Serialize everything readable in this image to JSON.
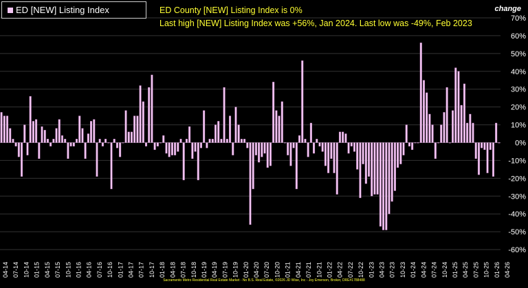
{
  "legend": {
    "label": "ED [NEW] Listing Index"
  },
  "headline": "ED County [NEW] Listing Index is 0%",
  "subline": "Last high [NEW] Listing Index was +56%, Jan 2024. Last low was -49%, Feb 2023",
  "unit_label": "change",
  "footer": "Sacramento Metro Residential Real Estate Market - No B.S. Real Estate, ©2026 JD Wise, Inc - Joy Emerson, Broker, DRE#1788488",
  "colors": {
    "background": "#000000",
    "bar_fill": "#f3c6f3",
    "bar_edge": "#c080c0",
    "annotation": "#ffff33",
    "grid": "#333333"
  },
  "chart_data": {
    "type": "bar",
    "title": "ED County [NEW] Listing Index is 0%",
    "ylabel": "change",
    "series_name": "ED [NEW] Listing Index",
    "ylim": [
      -60,
      70
    ],
    "yticks": [
      70,
      60,
      50,
      40,
      30,
      20,
      10,
      0,
      -10,
      -20,
      -30,
      -40,
      -50,
      -60
    ],
    "ytick_labels": [
      "70%",
      "60%",
      "50%",
      "40%",
      "30%",
      "20%",
      "10%",
      "0%",
      "-10%",
      "-20%",
      "-30%",
      "-40%",
      "-50%",
      "-60%"
    ],
    "xtick_labels": [
      "04-14",
      "07-14",
      "10-14",
      "01-15",
      "04-15",
      "07-15",
      "10-15",
      "01-16",
      "04-16",
      "07-16",
      "10-16",
      "01-17",
      "04-17",
      "07-17",
      "10-17",
      "01-18",
      "04-18",
      "07-18",
      "10-18",
      "01-19",
      "04-19",
      "07-19",
      "10-19",
      "01-20",
      "04-20",
      "07-20",
      "10-20",
      "01-21",
      "04-21",
      "07-21",
      "10-21",
      "01-22",
      "04-22",
      "07-22",
      "10-22",
      "01-23",
      "04-23",
      "07-23",
      "10-23",
      "01-24",
      "04-24",
      "07-24",
      "10-24",
      "01-25",
      "04-25",
      "07-25",
      "10-25",
      "01-26",
      "04-26"
    ],
    "grid": "horizontal, dark gray",
    "legend_position": "top-left",
    "values": [
      17,
      15,
      15,
      8,
      2,
      -2,
      -8,
      -19,
      10,
      -7,
      26,
      12,
      13,
      -9,
      9,
      7,
      2,
      -2,
      2,
      8,
      13,
      4,
      2,
      -9,
      -2,
      -2,
      2,
      15,
      8,
      -9,
      5,
      12,
      13,
      -19,
      2,
      -2,
      2,
      0,
      -26,
      2,
      -3,
      -8,
      0,
      18,
      6,
      6,
      15,
      15,
      32,
      23,
      -2,
      31,
      38,
      -4,
      -2,
      0,
      4,
      -6,
      -8,
      -7,
      -7,
      -5,
      2,
      -21,
      2,
      9,
      -9,
      -5,
      -21,
      -3,
      18,
      -3,
      2,
      2,
      10,
      12,
      2,
      31,
      2,
      15,
      -7,
      20,
      10,
      2,
      2,
      -3,
      -46,
      -26,
      -7,
      -11,
      -8,
      -6,
      -14,
      -13,
      34,
      18,
      15,
      23,
      0,
      -7,
      -13,
      -3,
      -26,
      4,
      46,
      2,
      -8,
      11,
      -6,
      2,
      -2,
      -5,
      -13,
      -17,
      -9,
      -17,
      -29,
      6,
      6,
      5,
      -6,
      -2,
      -5,
      -15,
      -31,
      -12,
      -23,
      -19,
      -30,
      -29,
      -29,
      -47,
      -49,
      -49,
      -40,
      -33,
      -27,
      -14,
      -12,
      -7,
      10,
      -2,
      -4,
      0,
      0,
      56,
      35,
      28,
      16,
      10,
      -9,
      0,
      10,
      17,
      31,
      0,
      18,
      42,
      40,
      21,
      33,
      11,
      16,
      11,
      -9,
      -18,
      -3,
      -4,
      -17,
      -4,
      -19,
      11,
      0
    ]
  }
}
